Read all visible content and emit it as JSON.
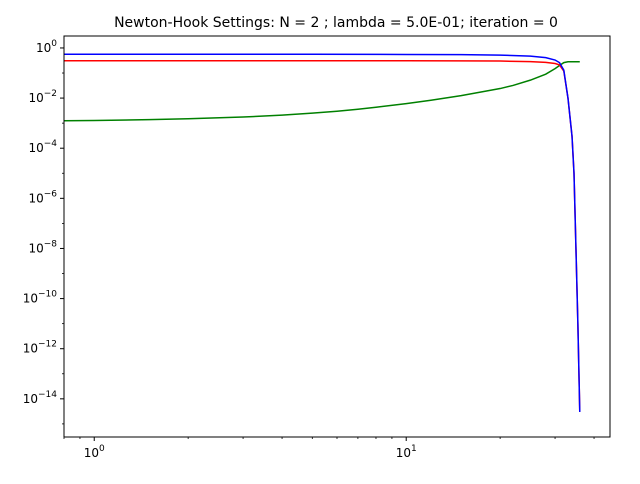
{
  "chart_data": {
    "type": "line",
    "title": "Newton-Hook Settings: N = 2 ; lambda = 5.0E-01; iteration = 0",
    "xlabel": "",
    "ylabel": "",
    "x_scale": "log",
    "y_scale": "log",
    "xlim": [
      0.8,
      45
    ],
    "ylim": [
      3e-16,
      3
    ],
    "grid": false,
    "x_ticks": [
      {
        "value": 1,
        "label": "10^0"
      },
      {
        "value": 10,
        "label": "10^1"
      }
    ],
    "y_ticks": [
      {
        "value": 1,
        "label": "10^0"
      },
      {
        "value": 0.01,
        "label": "10^-2"
      },
      {
        "value": 0.0001,
        "label": "10^-4"
      },
      {
        "value": 1e-06,
        "label": "10^-6"
      },
      {
        "value": 1e-08,
        "label": "10^-8"
      },
      {
        "value": 1e-10,
        "label": "10^-10"
      },
      {
        "value": 1e-12,
        "label": "10^-12"
      },
      {
        "value": 1e-14,
        "label": "10^-14"
      }
    ],
    "series": [
      {
        "color": "#008000",
        "points": [
          [
            0.8,
            0.00125
          ],
          [
            1,
            0.00128
          ],
          [
            1.5,
            0.00138
          ],
          [
            2,
            0.0015
          ],
          [
            3,
            0.00175
          ],
          [
            4,
            0.0021
          ],
          [
            5,
            0.0025
          ],
          [
            6,
            0.003
          ],
          [
            7,
            0.0036
          ],
          [
            8,
            0.0043
          ],
          [
            10,
            0.006
          ],
          [
            12,
            0.0082
          ],
          [
            15,
            0.0125
          ],
          [
            18,
            0.019
          ],
          [
            20,
            0.024
          ],
          [
            22,
            0.032
          ],
          [
            25,
            0.052
          ],
          [
            28,
            0.09
          ],
          [
            30,
            0.15
          ],
          [
            31,
            0.2
          ],
          [
            32,
            0.26
          ],
          [
            33,
            0.28
          ],
          [
            35,
            0.28
          ],
          [
            36,
            0.28
          ]
        ]
      },
      {
        "color": "#ff0000",
        "points": [
          [
            0.8,
            0.31
          ],
          [
            1,
            0.31
          ],
          [
            2,
            0.31
          ],
          [
            5,
            0.31
          ],
          [
            10,
            0.31
          ],
          [
            15,
            0.305
          ],
          [
            20,
            0.3
          ],
          [
            25,
            0.285
          ],
          [
            28,
            0.265
          ],
          [
            30,
            0.24
          ],
          [
            31,
            0.21
          ],
          [
            32,
            0.12
          ],
          [
            33,
            0.01
          ],
          [
            34,
            0.0003
          ],
          [
            34.5,
            1e-05
          ],
          [
            35,
            1e-08
          ],
          [
            35.5,
            1e-11
          ],
          [
            36,
            3e-15
          ]
        ]
      },
      {
        "color": "#0000ff",
        "points": [
          [
            0.8,
            0.56
          ],
          [
            1,
            0.56
          ],
          [
            2,
            0.56
          ],
          [
            5,
            0.56
          ],
          [
            10,
            0.55
          ],
          [
            15,
            0.54
          ],
          [
            20,
            0.52
          ],
          [
            25,
            0.47
          ],
          [
            28,
            0.41
          ],
          [
            30,
            0.33
          ],
          [
            31,
            0.26
          ],
          [
            32,
            0.13
          ],
          [
            33,
            0.01
          ],
          [
            34,
            0.0003
          ],
          [
            34.5,
            1e-05
          ],
          [
            35,
            1e-08
          ],
          [
            35.5,
            1e-11
          ],
          [
            36,
            3e-15
          ]
        ]
      }
    ]
  }
}
